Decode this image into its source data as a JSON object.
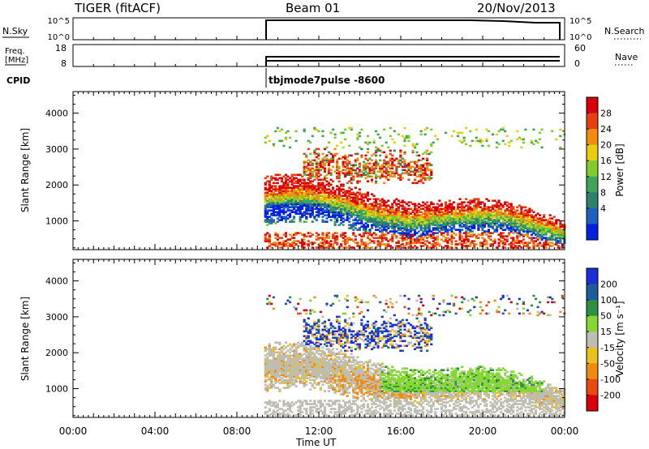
{
  "header": {
    "radar_title": "TIGER (fitACF)",
    "beam_label": "Beam 01",
    "date_label": "20/Nov/2013"
  },
  "status_panels": {
    "nsky_label": "N.Sky",
    "nsky_ticks": [
      "10^5",
      "10^0"
    ],
    "nsearch_label": "N.Search",
    "nsearch_ticks": [
      "10^5",
      "10^0"
    ],
    "freq_label_line1": "Freq.",
    "freq_label_line2": "[MHz]",
    "freq_ticks": [
      "18",
      "8"
    ],
    "nave_label": "Nave",
    "nave_ticks": [
      "60",
      "0"
    ],
    "cpid_label": "CPID",
    "cpid_value": "tbjmode7pulse -8600"
  },
  "colors": {
    "power_scale": [
      "#0022dd",
      "#1f5fc0",
      "#2e7f6e",
      "#3fa35a",
      "#7fcc2e",
      "#e8cc10",
      "#f08c10",
      "#e64010",
      "#d8000a"
    ],
    "velocity_scale": [
      "#1a2fd6",
      "#1f5a9a",
      "#2c8f42",
      "#84d830",
      "#bdbdb2",
      "#e8c020",
      "#f08a10",
      "#e84a10",
      "#d8000a"
    ]
  },
  "chart_data": [
    {
      "type": "heatmap",
      "name": "power",
      "ylabel": "Slant Range [km]",
      "yticks": [
        1000,
        2000,
        3000,
        4000
      ],
      "ylim": [
        200,
        4600
      ],
      "xlim": [
        "00:00",
        "24:00"
      ],
      "colorbar_label": "Power [dB]",
      "colorbar_ticks": [
        4,
        8,
        12,
        16,
        20,
        24,
        28
      ],
      "colorbar_range": [
        0,
        30
      ],
      "data_start": "09:20"
    },
    {
      "type": "heatmap",
      "name": "velocity",
      "ylabel": "Slant Range [km]",
      "yticks": [
        1000,
        2000,
        3000,
        4000
      ],
      "ylim": [
        200,
        4600
      ],
      "xlim": [
        "00:00",
        "24:00"
      ],
      "colorbar_label": "Velocity [m s⁻¹]",
      "colorbar_ticks": [
        200,
        100,
        50,
        15,
        -15,
        -50,
        -100,
        -200
      ],
      "data_start": "09:20"
    }
  ],
  "time_axis": {
    "ticks": [
      "00:00",
      "04:00",
      "08:00",
      "12:00",
      "16:00",
      "20:00",
      "00:00"
    ],
    "xlabel": "Time UT"
  }
}
